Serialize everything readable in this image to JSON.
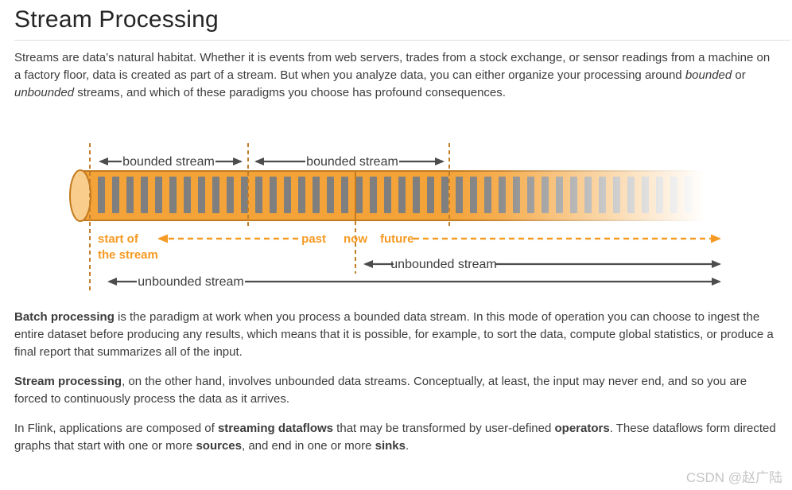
{
  "page": {
    "title": "Stream Processing"
  },
  "paragraphs": [
    [
      {
        "text": "Streams are data’s natural habitat. Whether it is events from web servers, trades from a stock exchange, or sensor readings from a machine on a factory floor, data is created as part of a stream. But when you analyze data, you can either organize your processing around "
      },
      {
        "text": "bounded",
        "italic": true
      },
      {
        "text": " or "
      },
      {
        "text": "unbounded",
        "italic": true
      },
      {
        "text": " streams, and which of these paradigms you choose has profound consequences."
      }
    ],
    [
      {
        "text": "Batch processing",
        "bold": true
      },
      {
        "text": " is the paradigm at work when you process a bounded data stream. In this mode of operation you can choose to ingest the entire dataset before producing any results, which means that it is possible, for example, to sort the data, compute global statistics, or produce a final report that summarizes all of the input."
      }
    ],
    [
      {
        "text": "Stream processing",
        "bold": true
      },
      {
        "text": ", on the other hand, involves unbounded data streams. Conceptually, at least, the input may never end, and so you are forced to continuously process the data as it arrives."
      }
    ],
    [
      {
        "text": "In Flink, applications are composed of "
      },
      {
        "text": "streaming dataflows",
        "bold": true
      },
      {
        "text": " that may be transformed by user-defined "
      },
      {
        "text": "operators",
        "bold": true
      },
      {
        "text": ". These dataflows form directed graphs that start with one or more "
      },
      {
        "text": "sources",
        "bold": true
      },
      {
        "text": ", and end in one or more "
      },
      {
        "text": "sinks",
        "bold": true
      },
      {
        "text": "."
      }
    ]
  ],
  "diagram": {
    "labels": {
      "bounded_1": "bounded stream",
      "bounded_2": "bounded stream",
      "start_line1": "start of",
      "start_line2": "the stream",
      "past": "past",
      "now": "now",
      "future": "future",
      "unbounded_right": "unbounded stream",
      "unbounded_bottom": "unbounded stream"
    },
    "colors": {
      "accent_orange": "#F59A23",
      "tube_fill": "#F4A339",
      "tube_border": "#C27A1E",
      "tube_cap_fill": "#F9CE8D",
      "event_bar_gray": "#7F7F7F",
      "dashed_line_brown": "#C17E2B",
      "arrow_dark_gray": "#4D4D4D",
      "title_rule_gray": "#DDDDDD",
      "watermark_gray": "#C5C5C5"
    }
  },
  "watermark": {
    "text": "CSDN @赵广陆"
  }
}
